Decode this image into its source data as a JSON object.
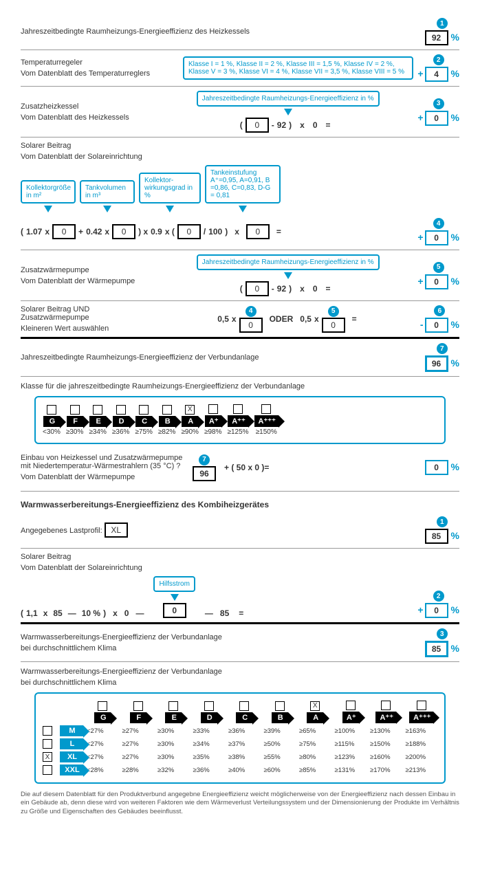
{
  "r1": {
    "title": "Jahreszeitbedingte Raumheizungs-Energieeffizienz des Heizkessels",
    "badge": "1",
    "value": "92"
  },
  "r2": {
    "title": "Temperaturregeler",
    "sub": "Vom Datenblatt des Temperaturreglers",
    "info": "Klasse I = 1 %, Klasse II = 2 %, Klasse III = 1,5 %, Klasse IV = 2 %, Klasse V = 3 %, Klasse VI = 4 %, Klasse VII = 3,5 %, Klasse VIII = 5 %",
    "badge": "2",
    "value": "4"
  },
  "r3": {
    "title": "Zusatzheizkessel",
    "sub": "Vom Datenblatt des Heizkessels",
    "info": "Jahreszeitbedingte Raumheizungs-Energieeffizienz in %",
    "f_in": "0",
    "f_minus": "92",
    "f_mult": "0",
    "badge": "3",
    "value": "0"
  },
  "r4": {
    "title": "Solarer Beitrag",
    "sub": "Vom Datenblatt der Solareinrichtung",
    "l1": "Kollektorgröße in m²",
    "l2": "Tankvolumen in m³",
    "l3": "Kollektor-wirkungsgrad in %",
    "l4": "Tankeinstufung A⁺=0,95, A=0,91, B =0,86, C=0,83, D-G = 0,81",
    "c1": "1.07",
    "v1": "0",
    "c2": "0.42",
    "v2": "0",
    "c3": "0.9",
    "v3": "0",
    "div": "100",
    "v4": "0",
    "badge": "4",
    "value": "0"
  },
  "r5": {
    "title": "Zusatzwärmepumpe",
    "sub": "Vom Datenblatt der Wärmepumpe",
    "info": "Jahreszeitbedingte Raumheizungs-Energieeffizienz in %",
    "f_in": "0",
    "f_minus": "92",
    "f_mult": "0",
    "badge": "5",
    "value": "0"
  },
  "r6": {
    "title": "Solarer Beitrag UND Zusatzwärmepumpe",
    "sub": "Kleineren Wert auswählen",
    "b4": "4",
    "v4": "0",
    "b5": "5",
    "v5": "0",
    "or": "ODER",
    "coef": "0,5",
    "badge": "6",
    "value": "0"
  },
  "r7": {
    "title": "Jahreszeitbedingte Raumheizungs-Energieeffizienz der Verbundanlage",
    "badge": "7",
    "value": "96"
  },
  "classes": {
    "title": "Klasse für die jahreszeitbedingte Raumheizungs-Energieeffizienz der Verbundanlage",
    "items": [
      {
        "l": "G",
        "t": "<30%",
        "x": ""
      },
      {
        "l": "F",
        "t": "≥30%",
        "x": ""
      },
      {
        "l": "E",
        "t": "≥34%",
        "x": ""
      },
      {
        "l": "D",
        "t": "≥36%",
        "x": ""
      },
      {
        "l": "C",
        "t": "≥75%",
        "x": ""
      },
      {
        "l": "B",
        "t": "≥82%",
        "x": ""
      },
      {
        "l": "A",
        "t": "≥90%",
        "x": "X"
      },
      {
        "l": "A⁺",
        "t": "≥98%",
        "x": ""
      },
      {
        "l": "A⁺⁺",
        "t": "≥125%",
        "x": ""
      },
      {
        "l": "A⁺⁺⁺",
        "t": "≥150%",
        "x": ""
      }
    ]
  },
  "r8": {
    "title1": "Einbau von Heizkessel und Zusatzwärmepumpe",
    "title2": "mit Niedertemperatur-Wärmestrahlern (35 °C) ?",
    "sub": "Vom Datenblatt der Wärmepumpe",
    "badge": "7",
    "v7": "96",
    "expr": "+ ( 50 x 0 )",
    "eq": "=",
    "value": "0"
  },
  "ww_title": "Warmwasserbereitungs-Energieeffizienz des Kombiheizgerätes",
  "ww1": {
    "sub": "Angegebenes Lastprofil:",
    "profile": "XL",
    "badge": "1",
    "value": "85"
  },
  "ww2": {
    "title": "Solarer Beitrag",
    "sub": "Vom Datenblatt der Solareinrichtung",
    "hint": "Hilfsstrom",
    "a": "1,1",
    "b": "85",
    "c": "10 %",
    "d": "0",
    "e": "0",
    "f": "85",
    "badge": "2",
    "value": "0"
  },
  "ww3": {
    "title": "Warmwasserbereitungs-Energieeffizienz der Verbundanlage",
    "sub": "bei durchschnittlichem Klima",
    "badge": "3",
    "value": "85"
  },
  "wwtable": {
    "title": "Warmwasserbereitungs-Energieeffizienz der Verbundanlage",
    "sub": "bei durchschnittlichem Klima",
    "cols": [
      "G",
      "F",
      "E",
      "D",
      "C",
      "B",
      "A",
      "A⁺",
      "A⁺⁺",
      "A⁺⁺⁺"
    ],
    "checked_col": 6,
    "rows": [
      {
        "size": "M",
        "x": "",
        "v": [
          "<27%",
          "≥27%",
          "≥30%",
          "≥33%",
          "≥36%",
          "≥39%",
          "≥65%",
          "≥100%",
          "≥130%",
          "≥163%"
        ]
      },
      {
        "size": "L",
        "x": "",
        "v": [
          "<27%",
          "≥27%",
          "≥30%",
          "≥34%",
          "≥37%",
          "≥50%",
          "≥75%",
          "≥115%",
          "≥150%",
          "≥188%"
        ]
      },
      {
        "size": "XL",
        "x": "X",
        "v": [
          "<27%",
          "≥27%",
          "≥30%",
          "≥35%",
          "≥38%",
          "≥55%",
          "≥80%",
          "≥123%",
          "≥160%",
          "≥200%"
        ]
      },
      {
        "size": "XXL",
        "x": "",
        "v": [
          "<28%",
          "≥28%",
          "≥32%",
          "≥36%",
          "≥40%",
          "≥60%",
          "≥85%",
          "≥131%",
          "≥170%",
          "≥213%"
        ]
      }
    ]
  },
  "footnote": "Die auf diesem Datenblatt für den Produktverbund angegebne Energieeffizienz weicht möglicherweise von der Energieeffizienz nach dessen Einbau in ein Gebäude ab, denn diese wird von weiteren Faktoren wie dem Wärmeverlust Verteilungssystem und der Dimensionierung der Produkte im Verhältnis zu Größe und Eigenschaften des Gebäudes beeinflusst."
}
